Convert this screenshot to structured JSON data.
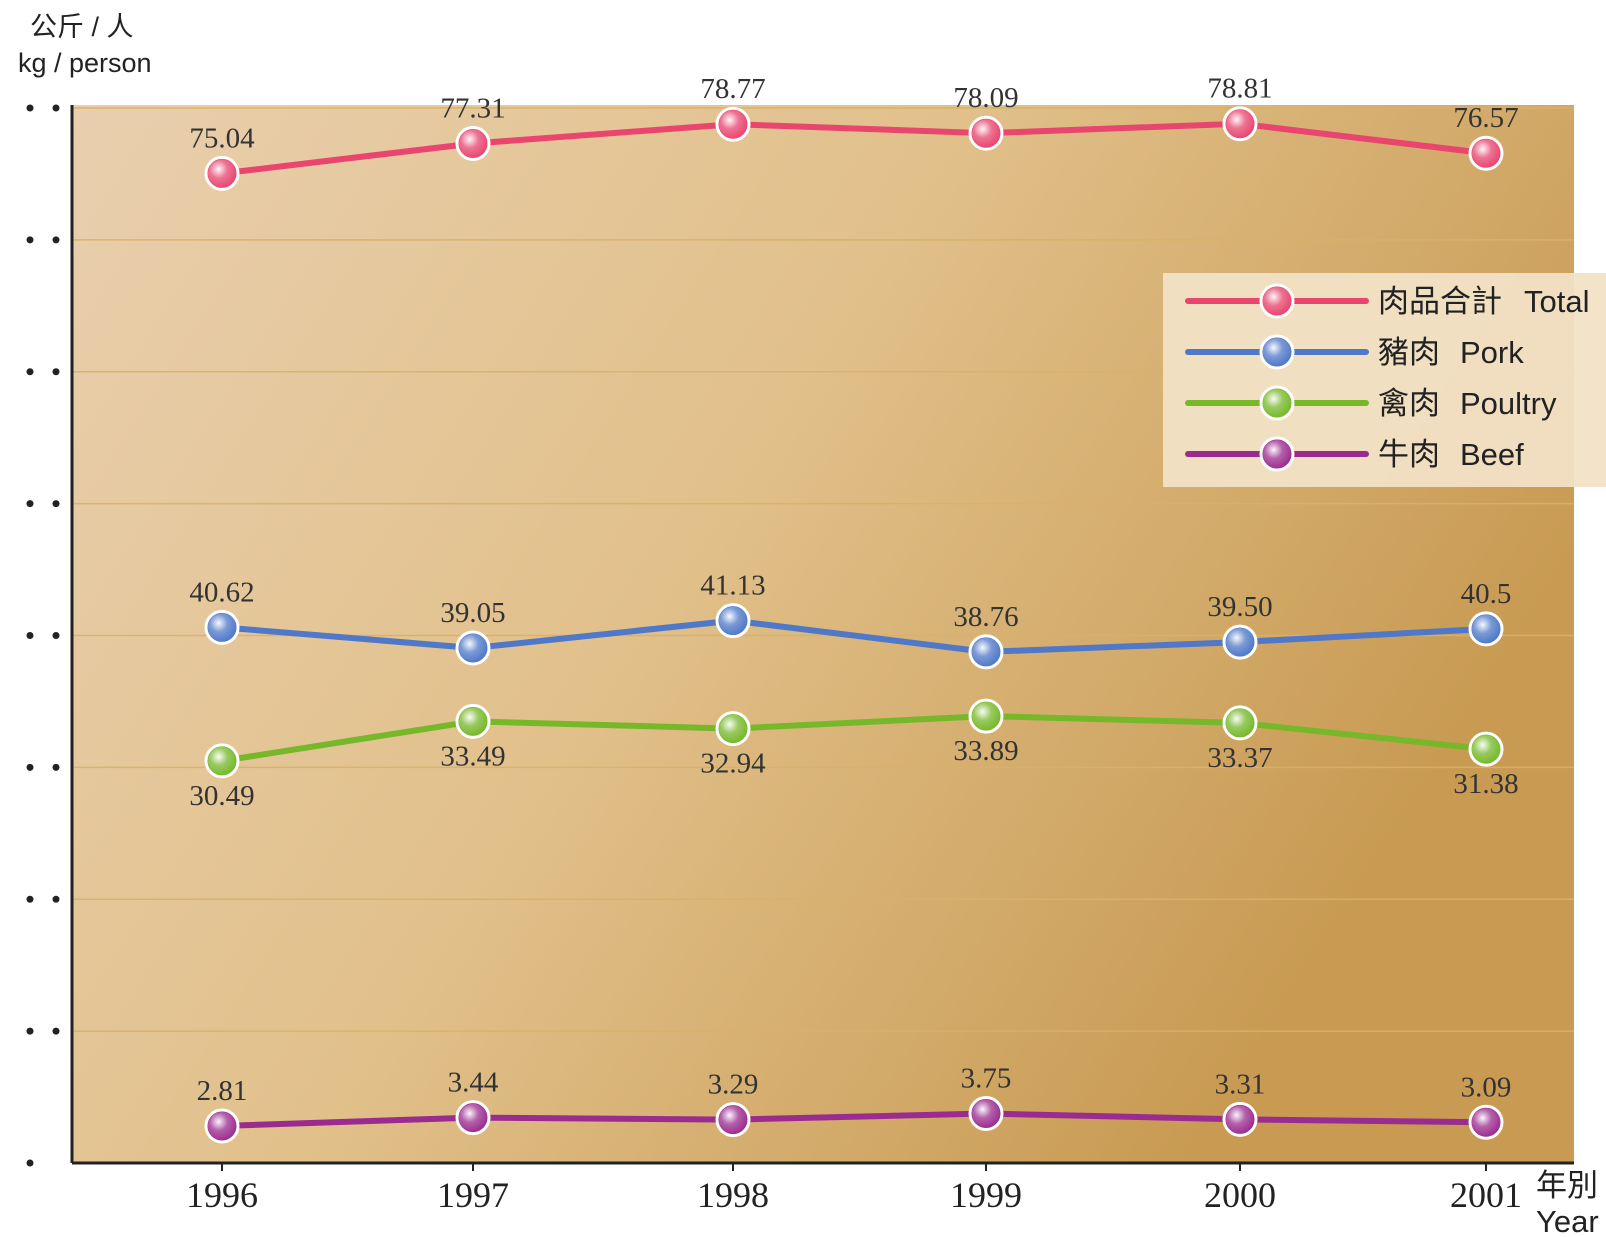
{
  "chart_data": {
    "type": "line",
    "ylabel_zh": "公斤 / 人",
    "ylabel_en": "kg / person",
    "xlabel_zh": "年別",
    "xlabel_en": "Year",
    "categories": [
      "1996",
      "1997",
      "1998",
      "1999",
      "2000",
      "2001"
    ],
    "ylim": [
      0,
      80
    ],
    "series": [
      {
        "name_zh": "肉品合計",
        "name_en": "Total",
        "color": "#e8456f",
        "values": [
          75.04,
          77.31,
          78.77,
          78.09,
          78.81,
          76.57
        ],
        "labels": [
          "75.04",
          "77.31",
          "78.77",
          "78.09",
          "78.81",
          "76.57"
        ]
      },
      {
        "name_zh": "豬肉",
        "name_en": "Pork",
        "color": "#4f78c8",
        "values": [
          40.62,
          39.05,
          41.13,
          38.76,
          39.5,
          40.5
        ],
        "labels": [
          "40.62",
          "39.05",
          "41.13",
          "38.76",
          "39.50",
          "40.5"
        ]
      },
      {
        "name_zh": "禽肉",
        "name_en": "Poultry",
        "color": "#76b82a",
        "values": [
          30.49,
          33.49,
          32.94,
          33.89,
          33.37,
          31.38
        ],
        "labels": [
          "30.49",
          "33.49",
          "32.94",
          "33.89",
          "33.37",
          "31.38"
        ]
      },
      {
        "name_zh": "牛肉",
        "name_en": "Beef",
        "color": "#9b2c8f",
        "values": [
          2.81,
          3.44,
          3.29,
          3.75,
          3.31,
          3.09
        ],
        "labels": [
          "2.81",
          "3.44",
          "3.29",
          "3.75",
          "3.31",
          "3.09"
        ]
      }
    ],
    "grid": true,
    "legend": "top-right"
  }
}
